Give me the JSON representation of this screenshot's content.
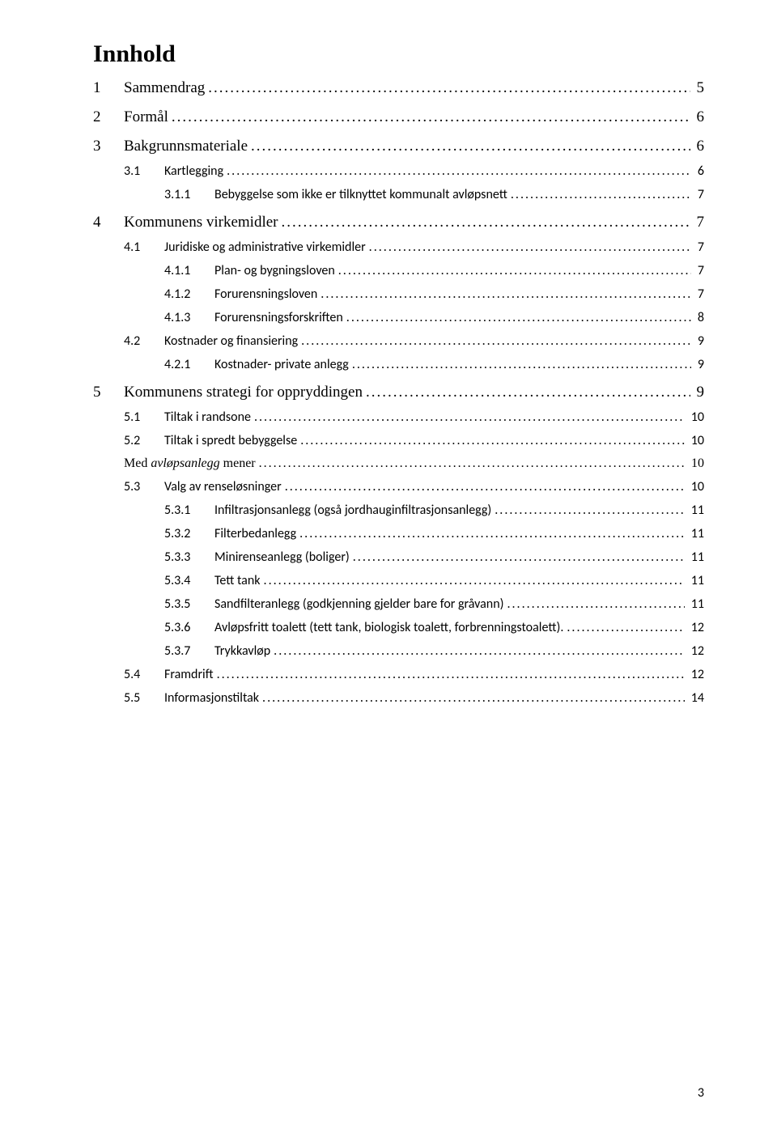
{
  "title": "Innhold",
  "pageNumber": "3",
  "entries": [
    {
      "level": "lvl1",
      "num": "1",
      "label": "Sammendrag",
      "page": "5"
    },
    {
      "level": "lvl1",
      "num": "2",
      "label": "Formål",
      "page": "6"
    },
    {
      "level": "lvl1",
      "num": "3",
      "label": "Bakgrunnsmateriale",
      "page": "6"
    },
    {
      "level": "lvl2",
      "num": "3.1",
      "label": "Kartlegging",
      "page": "6"
    },
    {
      "level": "lvl3",
      "num": "3.1.1",
      "label": "Bebyggelse som ikke er tilknyttet kommunalt avløpsnett",
      "page": "7"
    },
    {
      "level": "lvl1",
      "num": "4",
      "label": "Kommunens virkemidler",
      "page": "7"
    },
    {
      "level": "lvl2",
      "num": "4.1",
      "label": "Juridiske og administrative virkemidler",
      "page": "7"
    },
    {
      "level": "lvl3",
      "num": "4.1.1",
      "label": "Plan- og bygningsloven",
      "page": "7"
    },
    {
      "level": "lvl3",
      "num": "4.1.2",
      "label": "Forurensningsloven",
      "page": "7"
    },
    {
      "level": "lvl3",
      "num": "4.1.3",
      "label": "Forurensningsforskriften",
      "page": "8"
    },
    {
      "level": "lvl2",
      "num": "4.2",
      "label": "Kostnader og finansiering",
      "page": "9"
    },
    {
      "level": "lvl3",
      "num": "4.2.1",
      "label": "Kostnader- private anlegg",
      "page": "9"
    },
    {
      "level": "lvl1",
      "num": "5",
      "label": "Kommunens strategi for oppryddingen",
      "page": "9"
    },
    {
      "level": "lvl2",
      "num": "5.1",
      "label": "Tiltak i randsone",
      "page": "10"
    },
    {
      "level": "lvl2",
      "num": "5.2",
      "label": "Tiltak i spredt bebyggelse",
      "page": "10"
    },
    {
      "level": "lvl2-serif",
      "num": "",
      "label_pre": "Med ",
      "label_italic": "avløpsanlegg",
      "label_post": " mener",
      "page": "10"
    },
    {
      "level": "lvl2",
      "num": "5.3",
      "label": "Valg av renseløsninger",
      "page": "10"
    },
    {
      "level": "lvl3",
      "num": "5.3.1",
      "label": "Infiltrasjonsanlegg (også jordhauginfiltrasjonsanlegg)",
      "page": "11"
    },
    {
      "level": "lvl3",
      "num": "5.3.2",
      "label": "Filterbedanlegg",
      "page": "11"
    },
    {
      "level": "lvl3",
      "num": "5.3.3",
      "label": "Minirenseanlegg (boliger)",
      "page": "11"
    },
    {
      "level": "lvl3",
      "num": "5.3.4",
      "label": "Tett tank",
      "page": "11"
    },
    {
      "level": "lvl3",
      "num": "5.3.5",
      "label": "Sandfilteranlegg (godkjenning gjelder bare for gråvann)",
      "page": "11"
    },
    {
      "level": "lvl3",
      "num": "5.3.6",
      "label": "Avløpsfritt toalett (tett tank, biologisk toalett, forbrenningstoalett).",
      "page": "12"
    },
    {
      "level": "lvl3",
      "num": "5.3.7",
      "label": "Trykkavløp",
      "page": "12"
    },
    {
      "level": "lvl2",
      "num": "5.4",
      "label": "Framdrift",
      "page": "12"
    },
    {
      "level": "lvl2",
      "num": "5.5",
      "label": "Informasjonstiltak",
      "page": "14"
    }
  ]
}
